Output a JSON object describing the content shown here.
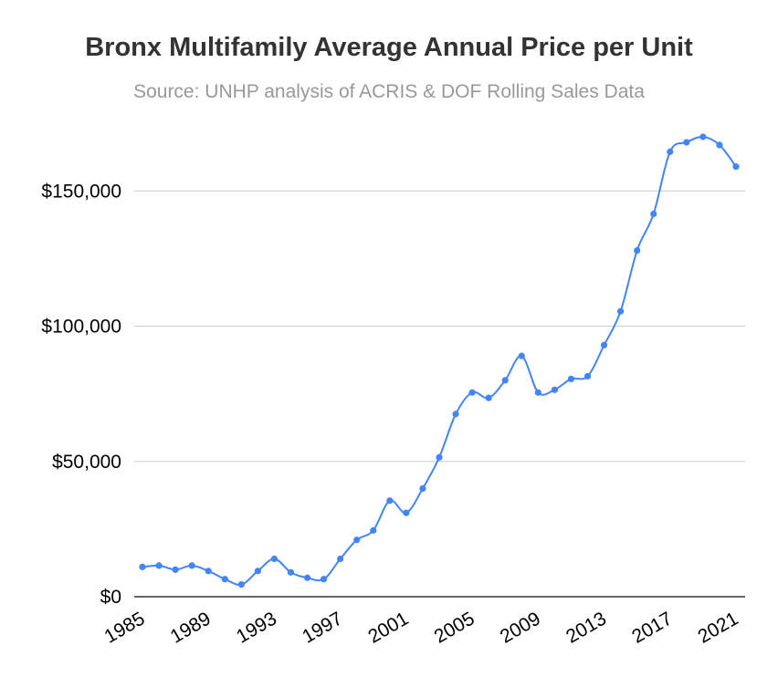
{
  "chart_data": {
    "type": "line",
    "title": "Bronx Multifamily Average Annual Price per Unit",
    "subtitle": "Source: UNHP analysis of ACRIS & DOF Rolling Sales Data",
    "xlabel": "",
    "ylabel": "",
    "ylim": [
      0,
      170000
    ],
    "xlim": [
      1985,
      2021
    ],
    "grid": true,
    "line_color": "#4285f4",
    "y_ticks": [
      {
        "value": 0,
        "label": "$0"
      },
      {
        "value": 50000,
        "label": "$50,000"
      },
      {
        "value": 100000,
        "label": "$100,000"
      },
      {
        "value": 150000,
        "label": "$150,000"
      }
    ],
    "x_ticks": [
      {
        "value": 1985,
        "label": "1985"
      },
      {
        "value": 1989,
        "label": "1989"
      },
      {
        "value": 1993,
        "label": "1993"
      },
      {
        "value": 1997,
        "label": "1997"
      },
      {
        "value": 2001,
        "label": "2001"
      },
      {
        "value": 2005,
        "label": "2005"
      },
      {
        "value": 2009,
        "label": "2009"
      },
      {
        "value": 2013,
        "label": "2013"
      },
      {
        "value": 2017,
        "label": "2017"
      },
      {
        "value": 2021,
        "label": "2021"
      }
    ],
    "x": [
      1985,
      1986,
      1987,
      1988,
      1989,
      1990,
      1991,
      1992,
      1993,
      1994,
      1995,
      1996,
      1997,
      1998,
      1999,
      2000,
      2001,
      2002,
      2003,
      2004,
      2005,
      2006,
      2007,
      2008,
      2009,
      2010,
      2011,
      2012,
      2013,
      2014,
      2015,
      2016,
      2017,
      2018,
      2019,
      2020,
      2021
    ],
    "values": [
      11000,
      11500,
      10000,
      11500,
      9500,
      6500,
      4500,
      9500,
      14000,
      9000,
      7000,
      6500,
      14000,
      21000,
      24500,
      35500,
      31000,
      40000,
      51500,
      67500,
      75500,
      73500,
      80000,
      89000,
      75500,
      76500,
      80500,
      81500,
      93000,
      105500,
      128000,
      141500,
      164500,
      168000,
      170000,
      167000,
      159000
    ]
  }
}
